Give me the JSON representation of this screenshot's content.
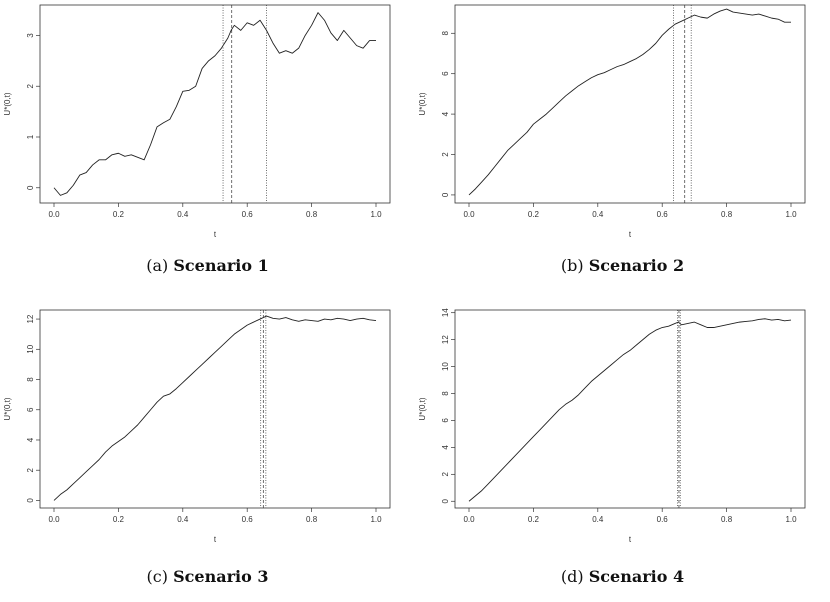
{
  "chart_data": [
    {
      "type": "line",
      "caption_prefix": "(a)",
      "caption_title": "Scenario 1",
      "xlabel": "t",
      "ylabel": "U*(0,t)",
      "xlim": [
        0.0,
        1.0
      ],
      "ylim": [
        -0.3,
        3.6
      ],
      "xticks": [
        "0.0",
        "0.2",
        "0.4",
        "0.6",
        "0.8",
        "1.0"
      ],
      "yticks": [
        "0",
        "1",
        "2",
        "3"
      ],
      "series": [
        {
          "x": [
            0.0,
            0.02,
            0.04,
            0.06,
            0.08,
            0.1,
            0.12,
            0.14,
            0.16,
            0.18,
            0.2,
            0.22,
            0.24,
            0.26,
            0.28,
            0.3,
            0.32,
            0.34,
            0.36,
            0.38,
            0.4,
            0.42,
            0.44,
            0.46,
            0.48,
            0.5,
            0.52,
            0.54,
            0.55,
            0.56,
            0.58,
            0.6,
            0.62,
            0.64,
            0.66,
            0.68,
            0.7,
            0.72,
            0.74,
            0.76,
            0.78,
            0.8,
            0.82,
            0.84,
            0.86,
            0.88,
            0.9,
            0.92,
            0.94,
            0.96,
            0.98,
            1.0
          ],
          "y": [
            0.0,
            -0.15,
            -0.1,
            0.05,
            0.25,
            0.3,
            0.45,
            0.55,
            0.55,
            0.65,
            0.68,
            0.62,
            0.65,
            0.6,
            0.55,
            0.85,
            1.2,
            1.28,
            1.35,
            1.6,
            1.9,
            1.92,
            2.0,
            2.35,
            2.5,
            2.6,
            2.75,
            2.95,
            3.1,
            3.2,
            3.1,
            3.25,
            3.2,
            3.3,
            3.1,
            2.85,
            2.65,
            2.7,
            2.65,
            2.75,
            3.0,
            3.2,
            3.45,
            3.3,
            3.05,
            2.9,
            3.1,
            2.95,
            2.8,
            2.75,
            2.9,
            2.9
          ]
        }
      ],
      "vlines": [
        {
          "x": 0.525,
          "style": "dotted"
        },
        {
          "x": 0.552,
          "style": "dashed"
        },
        {
          "x": 0.66,
          "style": "dotted"
        }
      ]
    },
    {
      "type": "line",
      "caption_prefix": "(b)",
      "caption_title": "Scenario 2",
      "xlabel": "t",
      "ylabel": "U*(0,t)",
      "xlim": [
        0.0,
        1.0
      ],
      "ylim": [
        -0.4,
        9.4
      ],
      "xticks": [
        "0.0",
        "0.2",
        "0.4",
        "0.6",
        "0.8",
        "1.0"
      ],
      "yticks": [
        "0",
        "2",
        "4",
        "6",
        "8"
      ],
      "series": [
        {
          "x": [
            0.0,
            0.02,
            0.04,
            0.06,
            0.08,
            0.1,
            0.12,
            0.14,
            0.16,
            0.18,
            0.2,
            0.22,
            0.24,
            0.26,
            0.28,
            0.3,
            0.32,
            0.34,
            0.36,
            0.38,
            0.4,
            0.42,
            0.44,
            0.46,
            0.48,
            0.5,
            0.52,
            0.54,
            0.56,
            0.58,
            0.6,
            0.62,
            0.64,
            0.66,
            0.68,
            0.7,
            0.72,
            0.74,
            0.76,
            0.78,
            0.8,
            0.82,
            0.84,
            0.86,
            0.88,
            0.9,
            0.92,
            0.94,
            0.96,
            0.98,
            1.0
          ],
          "y": [
            0.0,
            0.3,
            0.65,
            1.0,
            1.4,
            1.8,
            2.2,
            2.5,
            2.8,
            3.1,
            3.5,
            3.75,
            4.0,
            4.3,
            4.6,
            4.9,
            5.15,
            5.4,
            5.6,
            5.8,
            5.95,
            6.05,
            6.2,
            6.35,
            6.45,
            6.6,
            6.75,
            6.95,
            7.2,
            7.5,
            7.9,
            8.2,
            8.45,
            8.6,
            8.75,
            8.9,
            8.8,
            8.75,
            8.95,
            9.1,
            9.2,
            9.05,
            9.0,
            8.95,
            8.9,
            8.95,
            8.85,
            8.75,
            8.7,
            8.55,
            8.55
          ]
        }
      ],
      "vlines": [
        {
          "x": 0.635,
          "style": "dotted"
        },
        {
          "x": 0.67,
          "style": "dashed"
        },
        {
          "x": 0.69,
          "style": "dotted"
        }
      ]
    },
    {
      "type": "line",
      "caption_prefix": "(c)",
      "caption_title": "Scenario 3",
      "xlabel": "t",
      "ylabel": "U*(0,t)",
      "xlim": [
        0.0,
        1.0
      ],
      "ylim": [
        -0.5,
        12.6
      ],
      "xticks": [
        "0.0",
        "0.2",
        "0.4",
        "0.6",
        "0.8",
        "1.0"
      ],
      "yticks": [
        "0",
        "2",
        "4",
        "6",
        "8",
        "10",
        "12"
      ],
      "series": [
        {
          "x": [
            0.0,
            0.02,
            0.04,
            0.06,
            0.08,
            0.1,
            0.12,
            0.14,
            0.16,
            0.18,
            0.2,
            0.22,
            0.24,
            0.26,
            0.28,
            0.3,
            0.32,
            0.34,
            0.36,
            0.38,
            0.4,
            0.42,
            0.44,
            0.46,
            0.48,
            0.5,
            0.52,
            0.54,
            0.56,
            0.58,
            0.6,
            0.62,
            0.64,
            0.65,
            0.66,
            0.68,
            0.7,
            0.72,
            0.74,
            0.76,
            0.78,
            0.8,
            0.82,
            0.84,
            0.86,
            0.88,
            0.9,
            0.92,
            0.94,
            0.96,
            0.98,
            1.0
          ],
          "y": [
            0.0,
            0.4,
            0.7,
            1.1,
            1.5,
            1.9,
            2.3,
            2.7,
            3.2,
            3.6,
            3.9,
            4.2,
            4.6,
            5.0,
            5.5,
            6.0,
            6.5,
            6.9,
            7.05,
            7.4,
            7.8,
            8.2,
            8.6,
            9.0,
            9.4,
            9.8,
            10.2,
            10.6,
            11.0,
            11.3,
            11.6,
            11.8,
            12.0,
            12.1,
            12.2,
            12.05,
            12.0,
            12.1,
            11.95,
            11.85,
            11.95,
            11.9,
            11.85,
            12.0,
            11.95,
            12.05,
            12.0,
            11.9,
            12.0,
            12.05,
            11.95,
            11.9
          ]
        }
      ],
      "vlines": [
        {
          "x": 0.642,
          "style": "dotted"
        },
        {
          "x": 0.65,
          "style": "dashed"
        },
        {
          "x": 0.658,
          "style": "dotted"
        }
      ]
    },
    {
      "type": "line",
      "caption_prefix": "(d)",
      "caption_title": "Scenario 4",
      "xlabel": "t",
      "ylabel": "U*(0,t)",
      "xlim": [
        0.0,
        1.0
      ],
      "ylim": [
        -0.5,
        14.2
      ],
      "xticks": [
        "0.0",
        "0.2",
        "0.4",
        "0.6",
        "0.8",
        "1.0"
      ],
      "yticks": [
        "0",
        "2",
        "4",
        "6",
        "8",
        "10",
        "12",
        "14"
      ],
      "series": [
        {
          "x": [
            0.0,
            0.02,
            0.04,
            0.06,
            0.08,
            0.1,
            0.12,
            0.14,
            0.16,
            0.18,
            0.2,
            0.22,
            0.24,
            0.26,
            0.28,
            0.3,
            0.32,
            0.34,
            0.36,
            0.38,
            0.4,
            0.42,
            0.44,
            0.46,
            0.48,
            0.5,
            0.52,
            0.54,
            0.56,
            0.58,
            0.6,
            0.62,
            0.64,
            0.65,
            0.66,
            0.68,
            0.7,
            0.72,
            0.74,
            0.76,
            0.78,
            0.8,
            0.82,
            0.84,
            0.86,
            0.88,
            0.9,
            0.92,
            0.94,
            0.96,
            0.98,
            1.0
          ],
          "y": [
            0.0,
            0.4,
            0.8,
            1.3,
            1.8,
            2.3,
            2.8,
            3.3,
            3.8,
            4.3,
            4.8,
            5.3,
            5.8,
            6.3,
            6.8,
            7.2,
            7.5,
            7.9,
            8.4,
            8.9,
            9.3,
            9.7,
            10.1,
            10.5,
            10.9,
            11.2,
            11.6,
            12.0,
            12.4,
            12.7,
            12.9,
            13.0,
            13.2,
            13.3,
            13.1,
            13.2,
            13.3,
            13.1,
            12.9,
            12.9,
            13.0,
            13.1,
            13.2,
            13.3,
            13.35,
            13.4,
            13.5,
            13.55,
            13.45,
            13.5,
            13.4,
            13.45
          ]
        }
      ],
      "vlines": [
        {
          "x": 0.648,
          "style": "dotted"
        },
        {
          "x": 0.652,
          "style": "dashed"
        },
        {
          "x": 0.656,
          "style": "dotted"
        }
      ]
    }
  ]
}
